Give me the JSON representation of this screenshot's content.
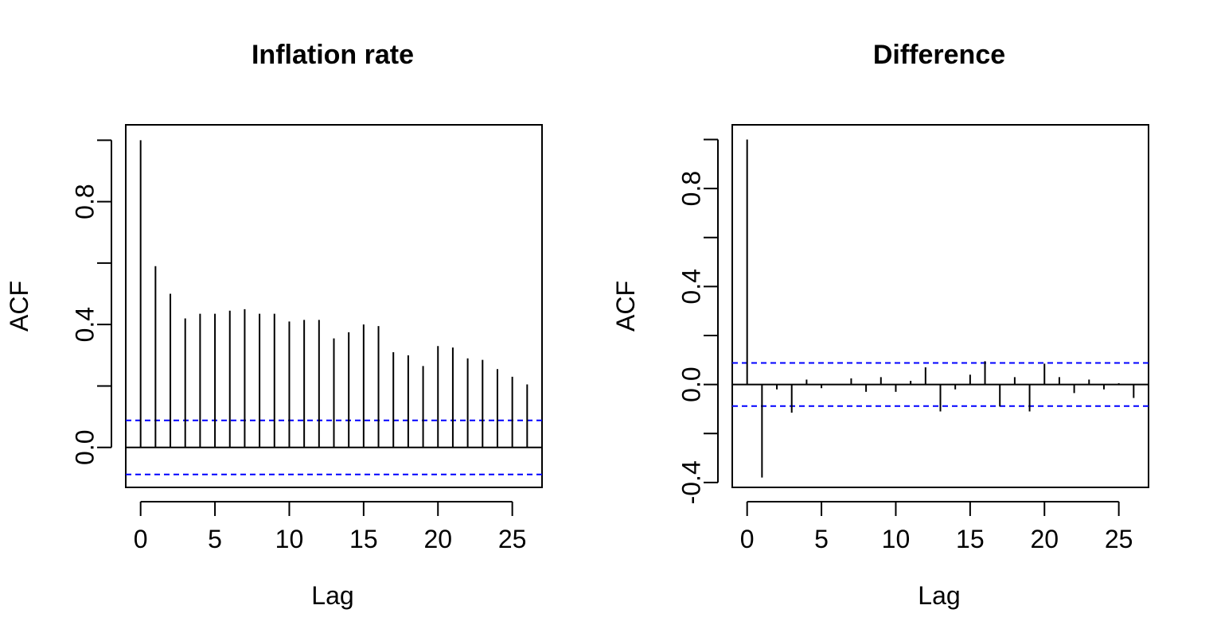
{
  "chart_data": [
    {
      "type": "bar",
      "title": "Inflation rate",
      "xlabel": "Lag",
      "ylabel": "ACF",
      "xlim": [
        -1,
        27
      ],
      "ylim": [
        -0.13,
        1.05
      ],
      "x_ticks": [
        0,
        5,
        10,
        15,
        20,
        25
      ],
      "y_ticks": [
        0.0,
        0.4,
        0.8
      ],
      "y_minor_ticks": [
        0.2,
        0.6,
        1.0
      ],
      "confidence_bound": 0.088,
      "confidence_color": "#0000ff",
      "lags": [
        0,
        1,
        2,
        3,
        4,
        5,
        6,
        7,
        8,
        9,
        10,
        11,
        12,
        13,
        14,
        15,
        16,
        17,
        18,
        19,
        20,
        21,
        22,
        23,
        24,
        25,
        26
      ],
      "values": [
        1.0,
        0.59,
        0.5,
        0.42,
        0.435,
        0.435,
        0.445,
        0.45,
        0.435,
        0.435,
        0.41,
        0.415,
        0.415,
        0.355,
        0.375,
        0.4,
        0.395,
        0.31,
        0.3,
        0.265,
        0.33,
        0.325,
        0.29,
        0.285,
        0.255,
        0.23,
        0.205
      ]
    },
    {
      "type": "bar",
      "title": "Difference",
      "xlabel": "Lag",
      "ylabel": "ACF",
      "xlim": [
        -1,
        27
      ],
      "ylim": [
        -0.42,
        1.06
      ],
      "x_ticks": [
        0,
        5,
        10,
        15,
        20,
        25
      ],
      "y_ticks": [
        -0.4,
        0.0,
        0.4,
        0.8
      ],
      "y_minor_ticks": [
        -0.2,
        0.2,
        0.6,
        1.0
      ],
      "confidence_bound": 0.088,
      "confidence_color": "#0000ff",
      "lags": [
        0,
        1,
        2,
        3,
        4,
        5,
        6,
        7,
        8,
        9,
        10,
        11,
        12,
        13,
        14,
        15,
        16,
        17,
        18,
        19,
        20,
        21,
        22,
        23,
        24,
        25,
        26
      ],
      "values": [
        1.0,
        -0.38,
        -0.02,
        -0.115,
        0.02,
        -0.015,
        0.0,
        0.025,
        -0.03,
        0.03,
        -0.03,
        0.015,
        0.07,
        -0.11,
        -0.02,
        0.04,
        0.095,
        -0.09,
        0.03,
        -0.11,
        0.085,
        0.03,
        -0.035,
        0.02,
        -0.02,
        0.005,
        -0.055
      ]
    }
  ]
}
